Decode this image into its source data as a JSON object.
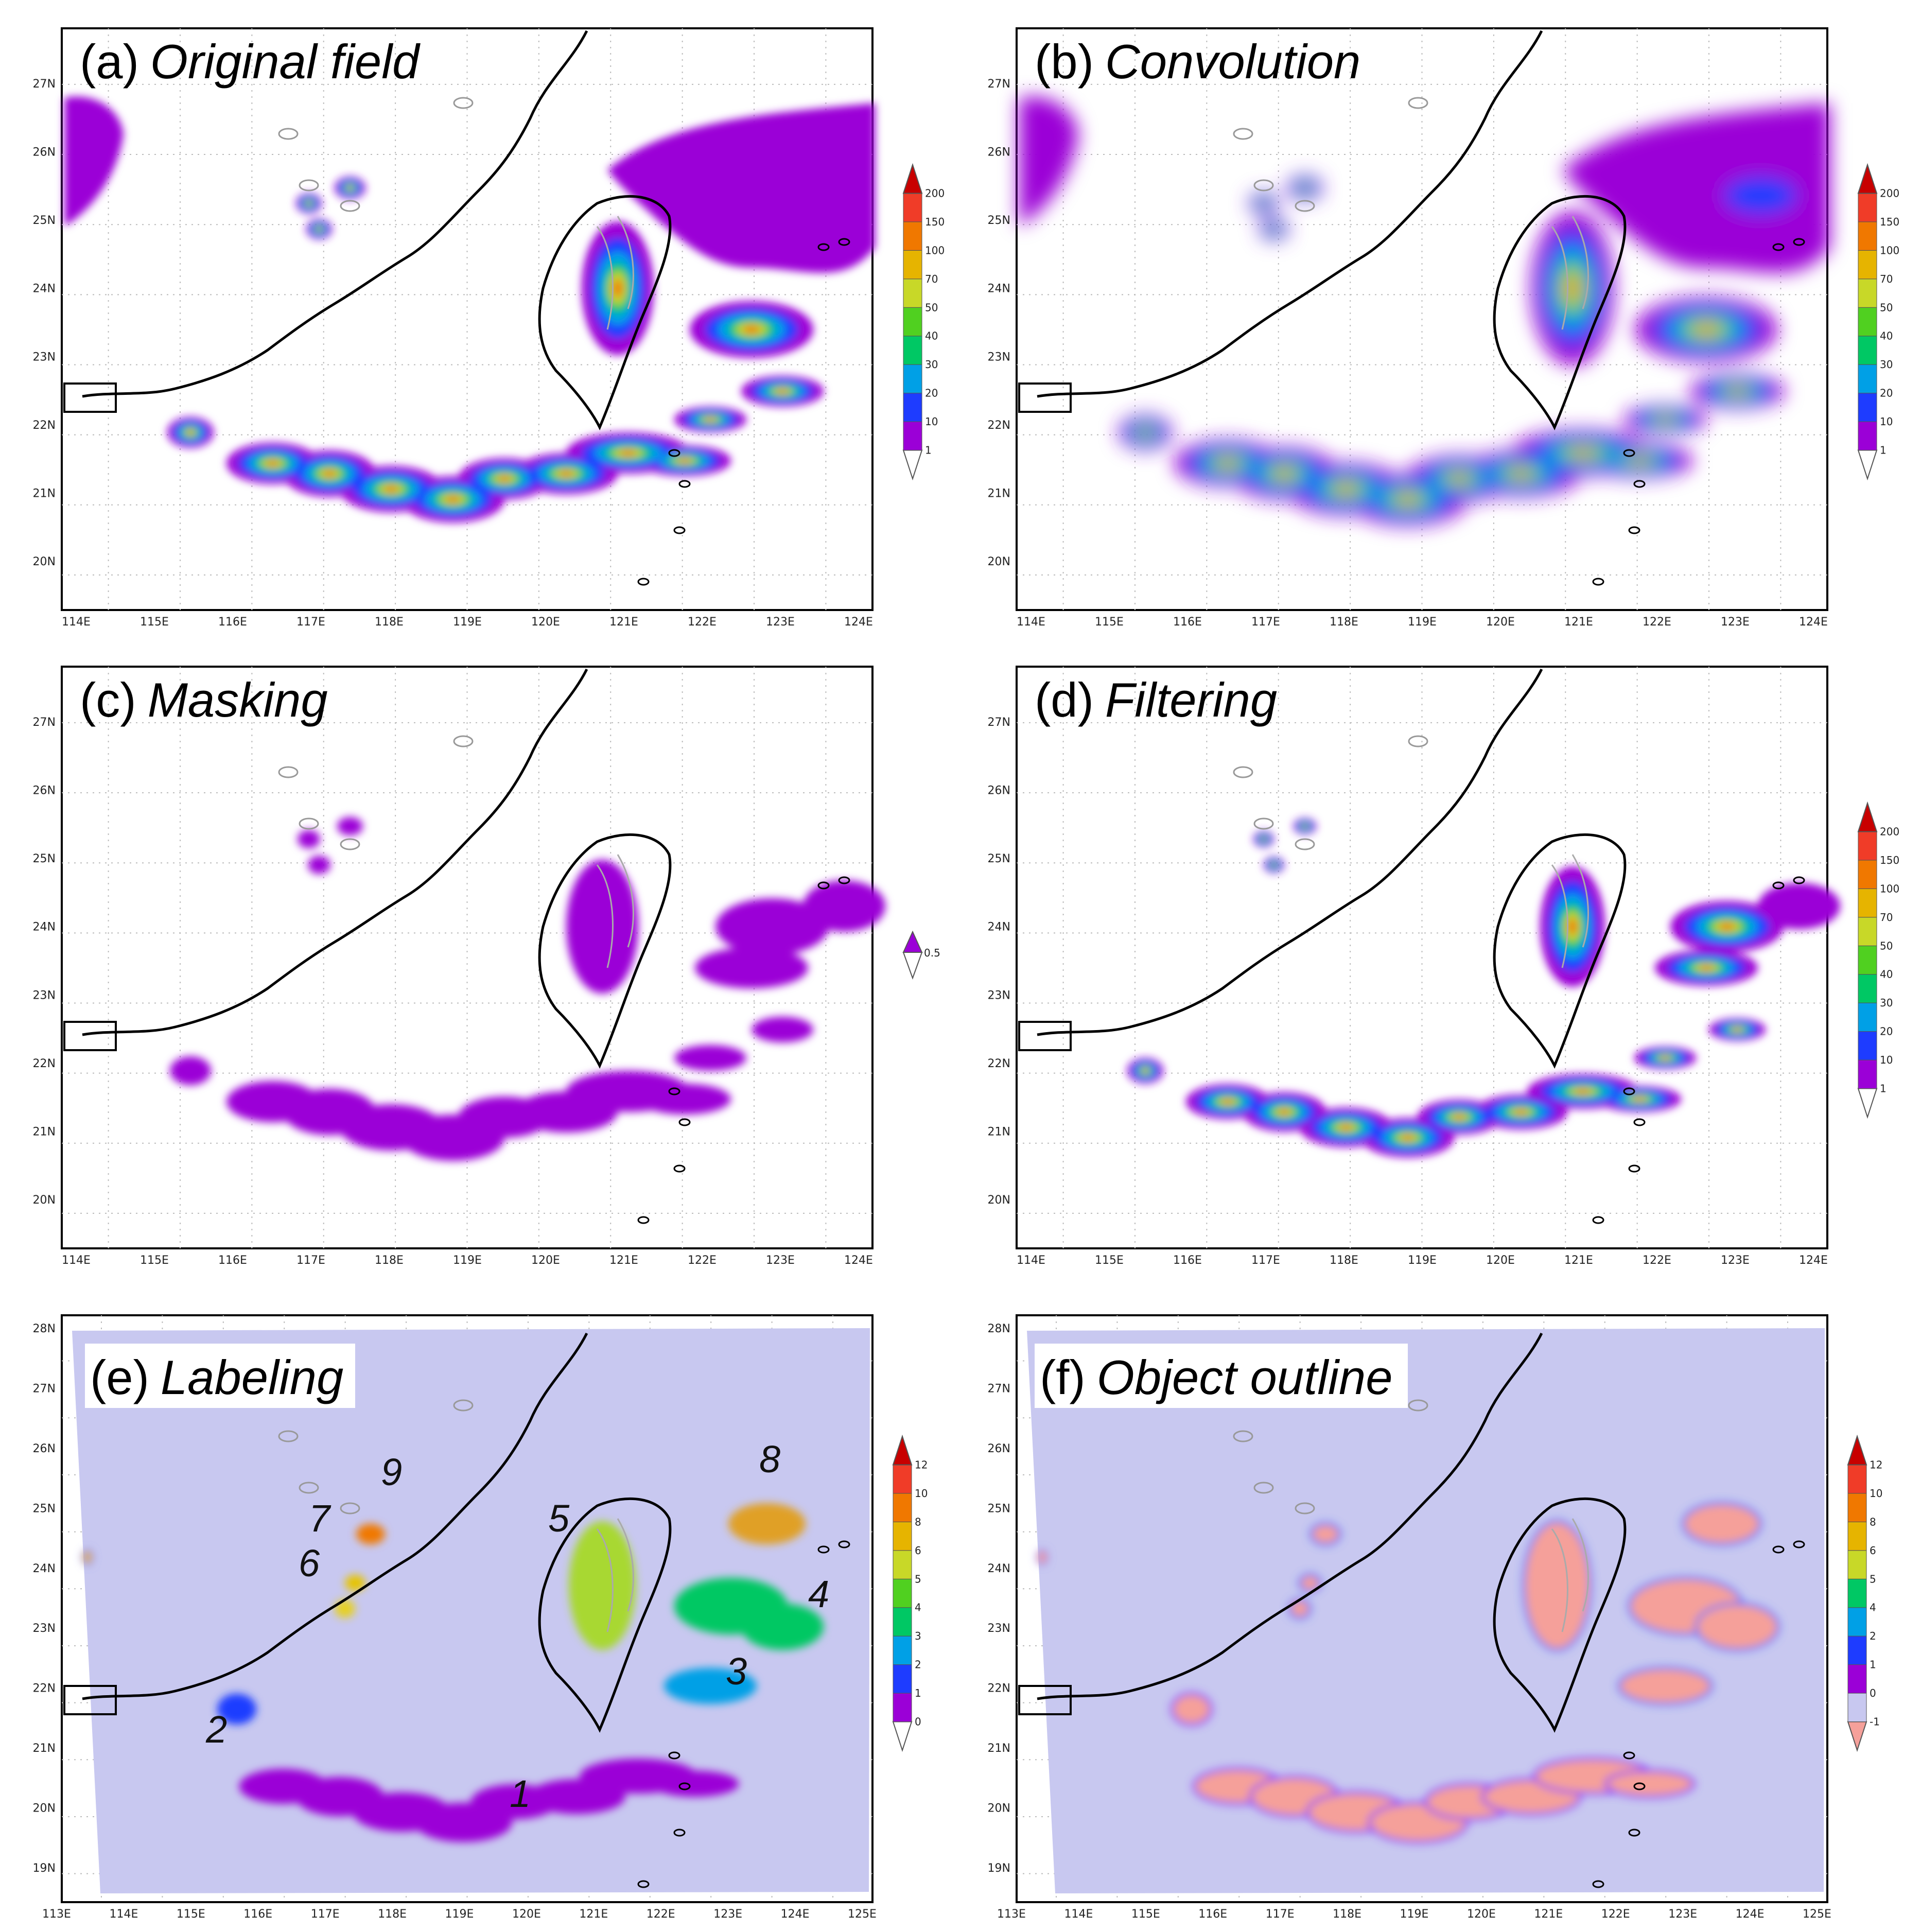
{
  "panels": [
    {
      "key": "a",
      "letter": "(a)",
      "title": "Original field",
      "kind": "field",
      "lat_ticks": [
        "20N",
        "21N",
        "22N",
        "23N",
        "24N",
        "25N",
        "26N",
        "27N"
      ],
      "lon_ticks": [
        "114E",
        "115E",
        "116E",
        "117E",
        "118E",
        "119E",
        "120E",
        "121E",
        "122E",
        "123E",
        "124E"
      ]
    },
    {
      "key": "b",
      "letter": "(b)",
      "title": "Convolution",
      "kind": "smooth",
      "lat_ticks": [
        "20N",
        "21N",
        "22N",
        "23N",
        "24N",
        "25N",
        "26N",
        "27N"
      ],
      "lon_ticks": [
        "114E",
        "115E",
        "116E",
        "117E",
        "118E",
        "119E",
        "120E",
        "121E",
        "122E",
        "123E",
        "124E"
      ]
    },
    {
      "key": "c",
      "letter": "(c)",
      "title": "Masking",
      "kind": "mask",
      "lat_ticks": [
        "20N",
        "21N",
        "22N",
        "23N",
        "24N",
        "25N",
        "26N",
        "27N"
      ],
      "lon_ticks": [
        "114E",
        "115E",
        "116E",
        "117E",
        "118E",
        "119E",
        "120E",
        "121E",
        "122E",
        "123E",
        "124E"
      ]
    },
    {
      "key": "d",
      "letter": "(d)",
      "title": "Filtering",
      "kind": "filter",
      "lat_ticks": [
        "20N",
        "21N",
        "22N",
        "23N",
        "24N",
        "25N",
        "26N",
        "27N"
      ],
      "lon_ticks": [
        "114E",
        "115E",
        "116E",
        "117E",
        "118E",
        "119E",
        "120E",
        "121E",
        "122E",
        "123E",
        "124E"
      ]
    },
    {
      "key": "e",
      "letter": "(e)",
      "title": "Labeling",
      "kind": "label",
      "lat_ticks": [
        "19N",
        "20N",
        "21N",
        "22N",
        "23N",
        "24N",
        "25N",
        "26N",
        "27N",
        "28N"
      ],
      "lon_ticks": [
        "113E",
        "114E",
        "115E",
        "116E",
        "117E",
        "118E",
        "119E",
        "120E",
        "121E",
        "122E",
        "123E",
        "124E",
        "125E"
      ]
    },
    {
      "key": "f",
      "letter": "(f)",
      "title": "Object outline",
      "kind": "outline",
      "lat_ticks": [
        "19N",
        "20N",
        "21N",
        "22N",
        "23N",
        "24N",
        "25N",
        "26N",
        "27N",
        "28N"
      ],
      "lon_ticks": [
        "113E",
        "114E",
        "115E",
        "116E",
        "117E",
        "118E",
        "119E",
        "120E",
        "121E",
        "122E",
        "123E",
        "124E",
        "125E"
      ]
    }
  ],
  "colorbars": {
    "rain": [
      "1",
      "10",
      "20",
      "30",
      "40",
      "50",
      "70",
      "100",
      "150",
      "200"
    ],
    "mask": [
      "0.5"
    ],
    "label": [
      "0",
      "1",
      "2",
      "3",
      "4",
      "5",
      "6",
      "8",
      "10",
      "12"
    ],
    "outline": [
      "-1",
      "0",
      "1",
      "2",
      "4",
      "5",
      "6",
      "8",
      "10",
      "12"
    ]
  },
  "object_numbers": [
    "1",
    "2",
    "3",
    "4",
    "5",
    "6",
    "7",
    "8",
    "9"
  ],
  "colors": {
    "rain_scale": [
      "#9b00d7",
      "#1e3cff",
      "#00a0e6",
      "#00c864",
      "#50d020",
      "#c8d828",
      "#e6b400",
      "#f07800",
      "#f03c28",
      "#c80000"
    ],
    "label_background": "#c8c8f0",
    "outline_fill": "#f5a09a",
    "mask_fill": "#9b00d7"
  }
}
